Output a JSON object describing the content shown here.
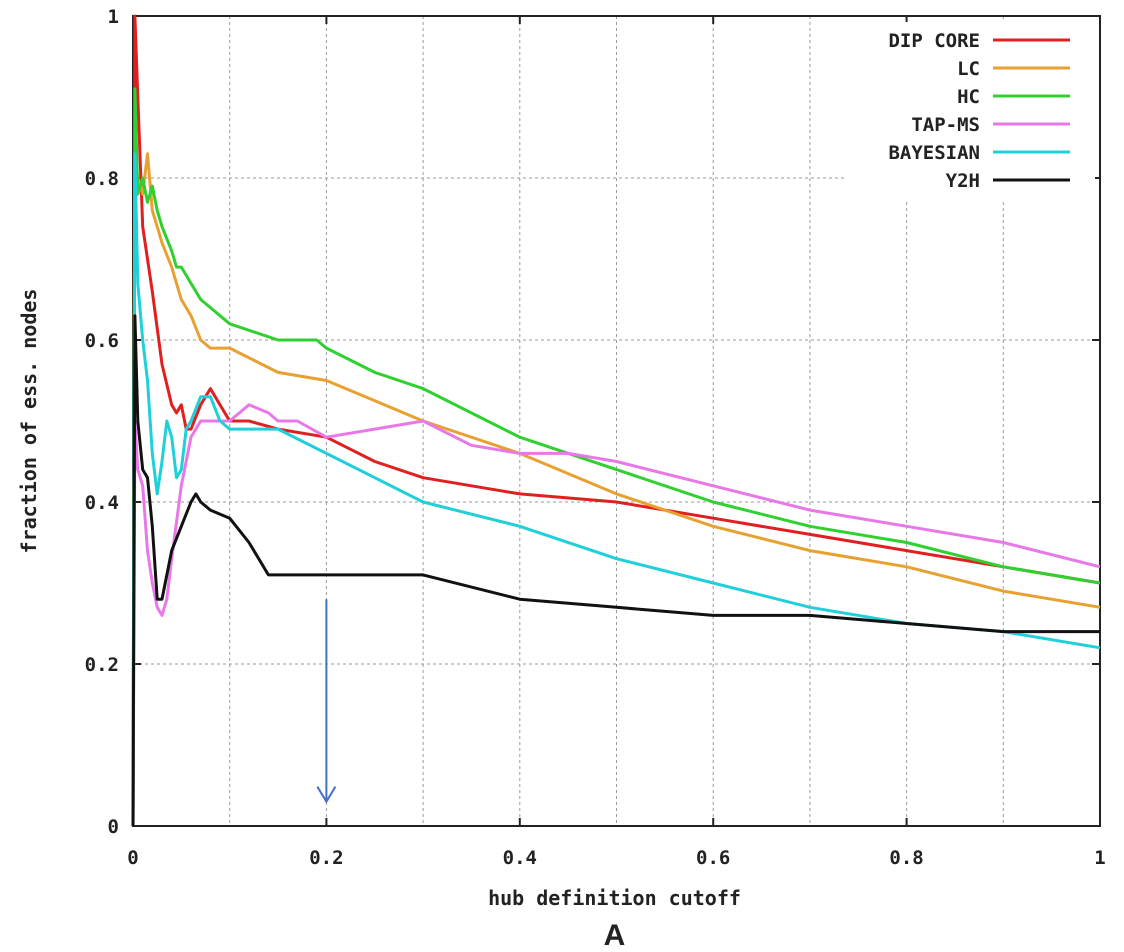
{
  "chart_data": {
    "type": "line",
    "xlabel": "hub definition cutoff",
    "ylabel": "fraction of ess. nodes",
    "panel_label": "A",
    "xlim": [
      0,
      1
    ],
    "ylim": [
      0,
      1
    ],
    "x_ticks": [
      0,
      0.2,
      0.4,
      0.6,
      0.8,
      1
    ],
    "x_tick_labels": [
      "0",
      "0.2",
      "0.4",
      "0.6",
      "0.8",
      "1"
    ],
    "y_ticks": [
      0,
      0.2,
      0.4,
      0.6,
      0.8,
      1
    ],
    "y_tick_labels": [
      "0",
      "0.2",
      "0.4",
      "0.6",
      "0.8",
      "1"
    ],
    "grid": true,
    "grid_x": [
      0.1,
      0.2,
      0.3,
      0.4,
      0.5,
      0.6,
      0.7,
      0.8,
      0.9
    ],
    "grid_y": [
      0.2,
      0.4,
      0.6,
      0.8
    ],
    "legend_position": "top-right",
    "annotations": [
      {
        "type": "arrow",
        "x": 0.2,
        "y_from": 0.28,
        "y_to": 0.03,
        "color": "#4472c4"
      }
    ],
    "series": [
      {
        "name": "DIP CORE",
        "color": "#e02020",
        "x": [
          0,
          0.002,
          0.005,
          0.01,
          0.015,
          0.02,
          0.03,
          0.04,
          0.045,
          0.05,
          0.055,
          0.06,
          0.07,
          0.08,
          0.09,
          0.1,
          0.12,
          0.15,
          0.2,
          0.25,
          0.3,
          0.4,
          0.5,
          0.6,
          0.7,
          0.8,
          0.9,
          1.0
        ],
        "y": [
          0,
          1.0,
          0.9,
          0.74,
          0.7,
          0.66,
          0.57,
          0.52,
          0.51,
          0.52,
          0.49,
          0.49,
          0.52,
          0.54,
          0.52,
          0.5,
          0.5,
          0.49,
          0.48,
          0.45,
          0.43,
          0.41,
          0.4,
          0.38,
          0.36,
          0.34,
          0.32,
          0.3
        ]
      },
      {
        "name": "LC",
        "color": "#e8a030",
        "x": [
          0,
          0.002,
          0.005,
          0.01,
          0.015,
          0.02,
          0.025,
          0.03,
          0.04,
          0.05,
          0.06,
          0.07,
          0.08,
          0.1,
          0.15,
          0.2,
          0.3,
          0.4,
          0.5,
          0.6,
          0.7,
          0.8,
          0.9,
          1.0
        ],
        "y": [
          0,
          0.83,
          0.8,
          0.78,
          0.83,
          0.76,
          0.74,
          0.72,
          0.69,
          0.65,
          0.63,
          0.6,
          0.59,
          0.59,
          0.56,
          0.55,
          0.5,
          0.46,
          0.41,
          0.37,
          0.34,
          0.32,
          0.29,
          0.27
        ]
      },
      {
        "name": "HC",
        "color": "#30d030",
        "x": [
          0,
          0.002,
          0.005,
          0.01,
          0.015,
          0.02,
          0.025,
          0.03,
          0.04,
          0.045,
          0.05,
          0.06,
          0.07,
          0.08,
          0.09,
          0.1,
          0.15,
          0.19,
          0.2,
          0.25,
          0.3,
          0.4,
          0.5,
          0.6,
          0.7,
          0.8,
          0.9,
          1.0
        ],
        "y": [
          0,
          0.91,
          0.78,
          0.8,
          0.77,
          0.79,
          0.76,
          0.74,
          0.71,
          0.69,
          0.69,
          0.67,
          0.65,
          0.64,
          0.63,
          0.62,
          0.6,
          0.6,
          0.59,
          0.56,
          0.54,
          0.48,
          0.44,
          0.4,
          0.37,
          0.35,
          0.32,
          0.3
        ]
      },
      {
        "name": "TAP-MS",
        "color": "#e878e8",
        "x": [
          0,
          0.002,
          0.005,
          0.01,
          0.015,
          0.02,
          0.025,
          0.03,
          0.035,
          0.04,
          0.05,
          0.06,
          0.07,
          0.08,
          0.1,
          0.12,
          0.14,
          0.15,
          0.17,
          0.2,
          0.25,
          0.3,
          0.35,
          0.4,
          0.45,
          0.5,
          0.6,
          0.7,
          0.8,
          0.9,
          1.0
        ],
        "y": [
          0,
          0.5,
          0.44,
          0.42,
          0.34,
          0.3,
          0.27,
          0.26,
          0.28,
          0.33,
          0.42,
          0.48,
          0.5,
          0.5,
          0.5,
          0.52,
          0.51,
          0.5,
          0.5,
          0.48,
          0.49,
          0.5,
          0.47,
          0.46,
          0.46,
          0.45,
          0.42,
          0.39,
          0.37,
          0.35,
          0.32
        ]
      },
      {
        "name": "BAYESIAN",
        "color": "#20d0d8",
        "x": [
          0,
          0.002,
          0.005,
          0.01,
          0.015,
          0.02,
          0.025,
          0.03,
          0.035,
          0.04,
          0.045,
          0.05,
          0.055,
          0.06,
          0.07,
          0.08,
          0.09,
          0.1,
          0.15,
          0.2,
          0.25,
          0.3,
          0.4,
          0.5,
          0.6,
          0.7,
          0.8,
          0.9,
          1.0
        ],
        "y": [
          0,
          0.83,
          0.67,
          0.6,
          0.55,
          0.46,
          0.41,
          0.45,
          0.5,
          0.48,
          0.43,
          0.44,
          0.49,
          0.5,
          0.53,
          0.53,
          0.5,
          0.49,
          0.49,
          0.46,
          0.43,
          0.4,
          0.37,
          0.33,
          0.3,
          0.27,
          0.25,
          0.24,
          0.22
        ]
      },
      {
        "name": "Y2H",
        "color": "#111111",
        "x": [
          0,
          0.002,
          0.005,
          0.01,
          0.015,
          0.02,
          0.025,
          0.03,
          0.04,
          0.05,
          0.06,
          0.065,
          0.07,
          0.08,
          0.1,
          0.12,
          0.14,
          0.2,
          0.27,
          0.3,
          0.4,
          0.5,
          0.6,
          0.7,
          0.8,
          0.9,
          1.0
        ],
        "y": [
          0,
          0.63,
          0.5,
          0.44,
          0.43,
          0.37,
          0.28,
          0.28,
          0.34,
          0.37,
          0.4,
          0.41,
          0.4,
          0.39,
          0.38,
          0.35,
          0.31,
          0.31,
          0.31,
          0.31,
          0.28,
          0.27,
          0.26,
          0.26,
          0.25,
          0.24,
          0.24
        ]
      }
    ]
  }
}
